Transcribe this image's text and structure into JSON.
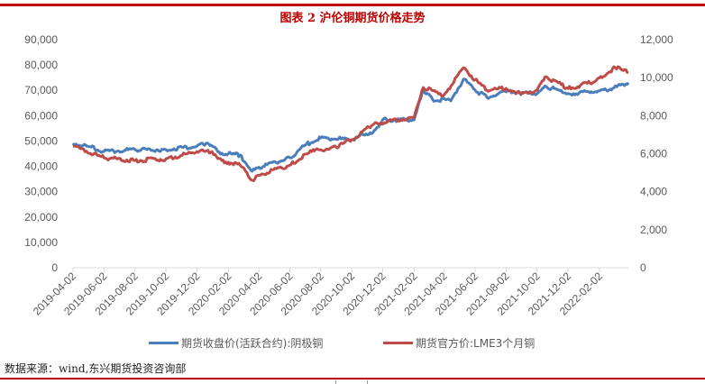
{
  "title": "图表 2  沪伦铜期货价格走势",
  "legend": [
    {
      "label": "期货收盘价(活跃合约):阴极铜",
      "color": "#4a7ebb"
    },
    {
      "label": "期货官方价:LME3个月铜",
      "color": "#be4b48"
    }
  ],
  "source": "数据来源：wind,东兴期货投资咨询部",
  "colors": {
    "accent": "#c00000",
    "series_blue": "#4a7ebb",
    "series_red": "#be4b48",
    "axis_text": "#595959"
  },
  "chart_data": {
    "type": "line",
    "title": "图表 2  沪伦铜期货价格走势",
    "xlabel": "",
    "ylabel_left": "",
    "ylabel_right": "",
    "x_tick_labels": [
      "2019-04-02",
      "2019-06-02",
      "2019-08-02",
      "2019-10-02",
      "2019-12-02",
      "2020-02-02",
      "2020-04-02",
      "2020-06-02",
      "2020-08-02",
      "2020-10-02",
      "2020-12-02",
      "2021-02-02",
      "2021-04-02",
      "2021-06-02",
      "2021-08-02",
      "2021-10-02",
      "2021-12-02",
      "2022-02-02"
    ],
    "y_left_ticks": [
      "0",
      "10,000",
      "20,000",
      "30,000",
      "40,000",
      "50,000",
      "60,000",
      "70,000",
      "80,000",
      "90,000"
    ],
    "y_right_ticks": [
      "0",
      "2,000",
      "4,000",
      "6,000",
      "8,000",
      "10,000",
      "12,000"
    ],
    "ylim_left": [
      0,
      90000
    ],
    "ylim_right": [
      0,
      12000
    ],
    "grid": false,
    "legend_position": "bottom",
    "series": [
      {
        "name": "期货收盘价(活跃合约):阴极铜",
        "axis": "left",
        "color": "#4a7ebb",
        "x": [
          "2019-04-02",
          "2019-05-05",
          "2019-06-02",
          "2019-08-02",
          "2019-10-02",
          "2019-12-02",
          "2019-12-20",
          "2020-01-20",
          "2020-02-25",
          "2020-03-20",
          "2020-04-10",
          "2020-06-02",
          "2020-07-05",
          "2020-08-02",
          "2020-10-02",
          "2020-11-15",
          "2020-12-02",
          "2021-02-02",
          "2021-02-20",
          "2021-03-10",
          "2021-04-15",
          "2021-05-10",
          "2021-06-02",
          "2021-06-25",
          "2021-08-02",
          "2021-10-02",
          "2021-10-20",
          "2021-12-02",
          "2022-02-02",
          "2022-02-28",
          "2022-03-31"
        ],
        "values": [
          49100,
          47700,
          45900,
          46600,
          46600,
          48000,
          49100,
          45200,
          44500,
          38100,
          39900,
          43400,
          48800,
          51200,
          50500,
          54100,
          58400,
          58400,
          70100,
          66500,
          65800,
          74400,
          70100,
          67300,
          69400,
          68700,
          71500,
          68700,
          69800,
          70800,
          73000
        ]
      },
      {
        "name": "期货官方价:LME3个月铜",
        "axis": "right",
        "color": "#be4b48",
        "x": [
          "2019-04-02",
          "2019-06-02",
          "2019-08-02",
          "2019-10-02",
          "2019-12-02",
          "2020-01-01",
          "2020-01-20",
          "2020-02-25",
          "2020-03-20",
          "2020-04-10",
          "2020-06-02",
          "2020-07-15",
          "2020-09-01",
          "2020-10-02",
          "2020-11-15",
          "2021-02-02",
          "2021-02-20",
          "2021-04-02",
          "2021-05-10",
          "2021-06-02",
          "2021-06-25",
          "2021-08-02",
          "2021-09-01",
          "2021-10-02",
          "2021-10-20",
          "2021-12-02",
          "2022-01-25",
          "2022-03-05",
          "2022-03-31"
        ],
        "values": [
          6400,
          5780,
          5640,
          5730,
          6110,
          6110,
          5640,
          5400,
          4600,
          4930,
          5400,
          6110,
          6350,
          6730,
          7580,
          7910,
          9480,
          9100,
          10520,
          9900,
          9340,
          9430,
          9150,
          9340,
          10050,
          9430,
          9810,
          10520,
          10280
        ]
      }
    ]
  }
}
